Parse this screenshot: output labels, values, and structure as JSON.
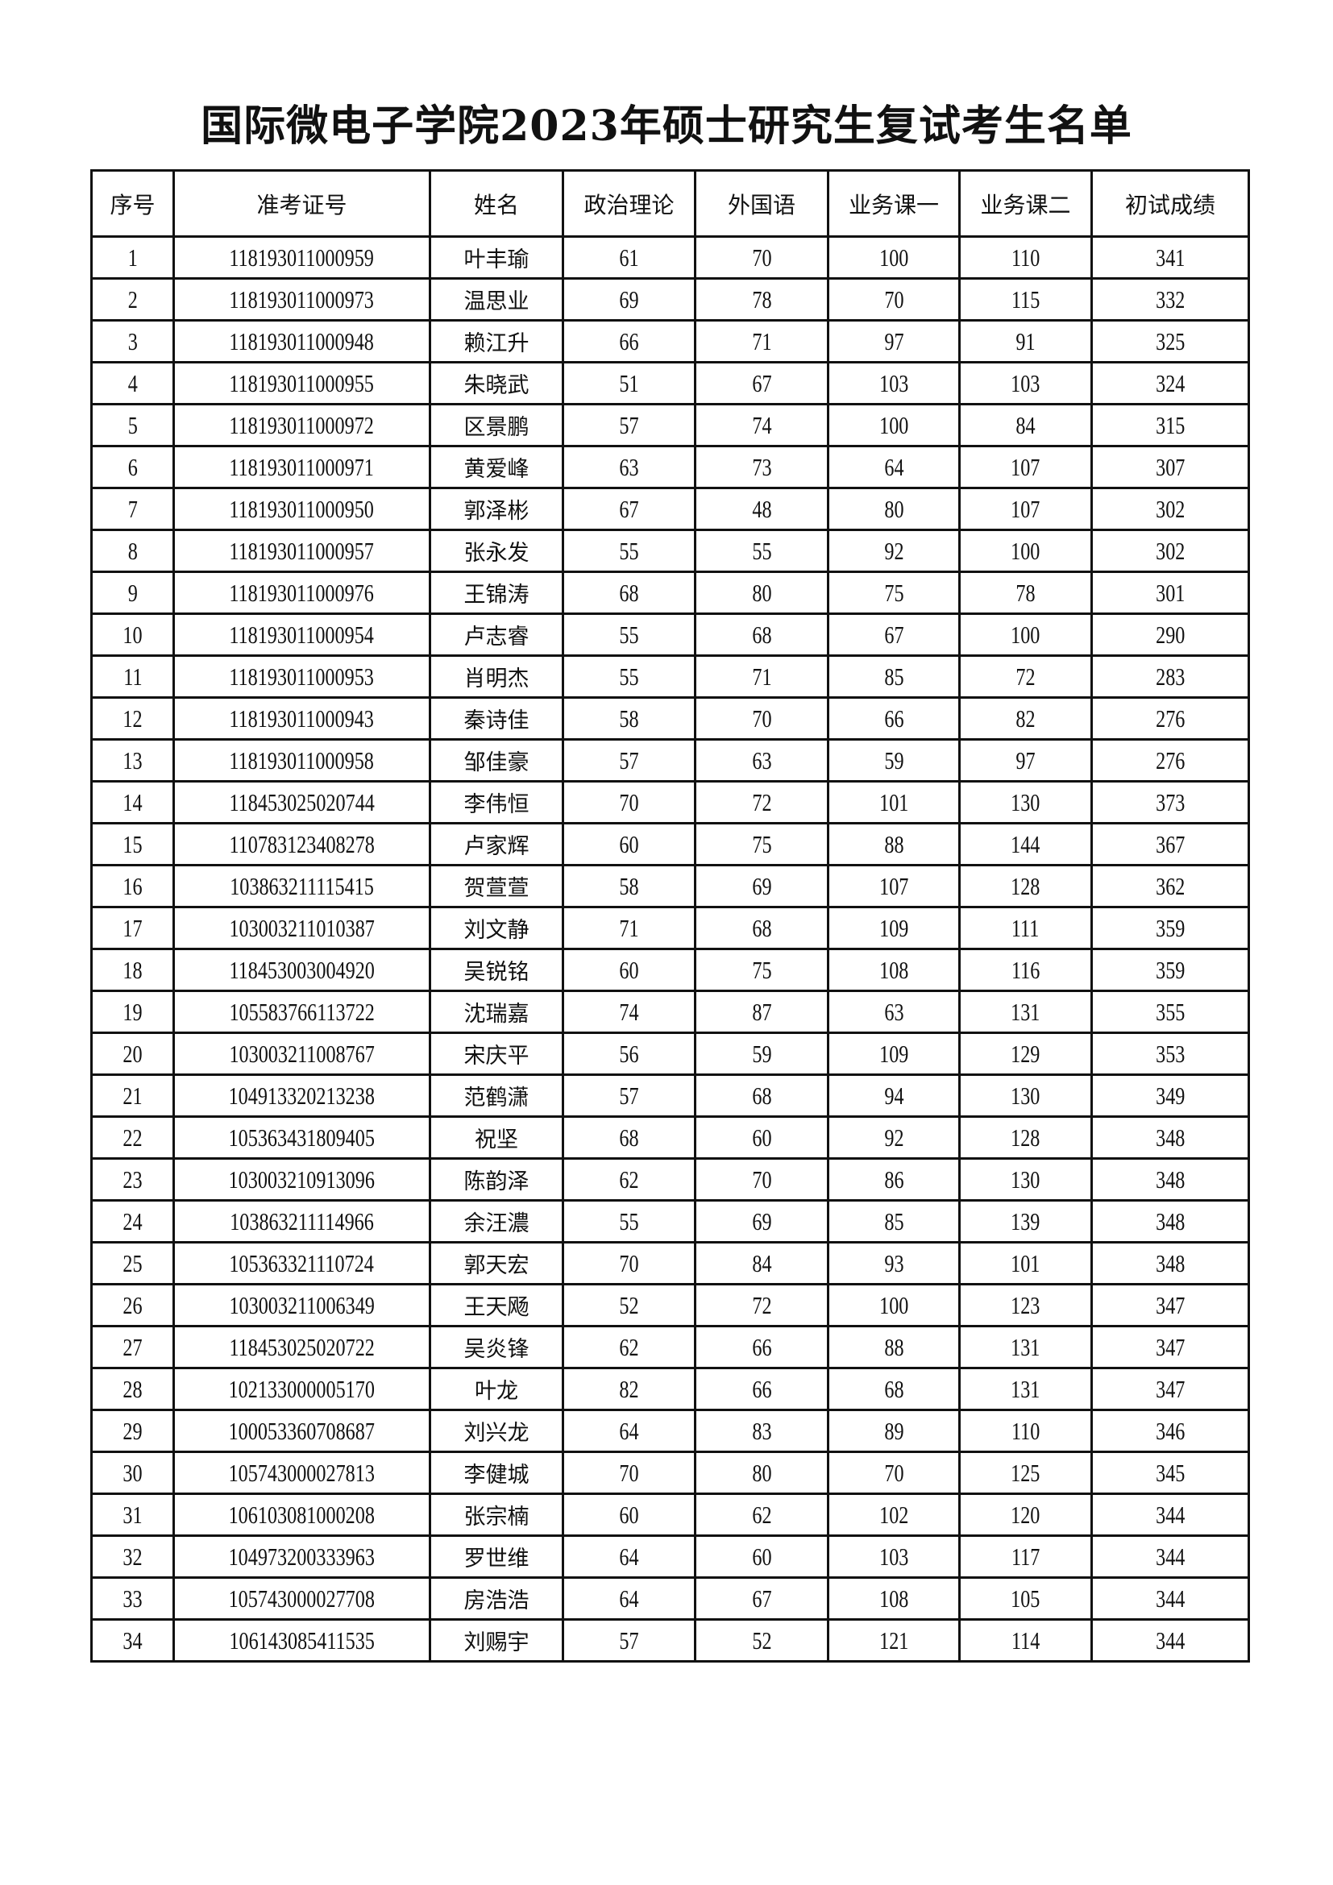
{
  "title": "国际微电子学院2023年硕士研究生复试考生名单",
  "table": {
    "headers": [
      "序号",
      "准考证号",
      "姓名",
      "政治理论",
      "外国语",
      "业务课一",
      "业务课二",
      "初试成绩"
    ],
    "rows": [
      [
        "1",
        "118193011000959",
        "叶丰瑜",
        "61",
        "70",
        "100",
        "110",
        "341"
      ],
      [
        "2",
        "118193011000973",
        "温思业",
        "69",
        "78",
        "70",
        "115",
        "332"
      ],
      [
        "3",
        "118193011000948",
        "赖江升",
        "66",
        "71",
        "97",
        "91",
        "325"
      ],
      [
        "4",
        "118193011000955",
        "朱晓武",
        "51",
        "67",
        "103",
        "103",
        "324"
      ],
      [
        "5",
        "118193011000972",
        "区景鹏",
        "57",
        "74",
        "100",
        "84",
        "315"
      ],
      [
        "6",
        "118193011000971",
        "黄爱峰",
        "63",
        "73",
        "64",
        "107",
        "307"
      ],
      [
        "7",
        "118193011000950",
        "郭泽彬",
        "67",
        "48",
        "80",
        "107",
        "302"
      ],
      [
        "8",
        "118193011000957",
        "张永发",
        "55",
        "55",
        "92",
        "100",
        "302"
      ],
      [
        "9",
        "118193011000976",
        "王锦涛",
        "68",
        "80",
        "75",
        "78",
        "301"
      ],
      [
        "10",
        "118193011000954",
        "卢志睿",
        "55",
        "68",
        "67",
        "100",
        "290"
      ],
      [
        "11",
        "118193011000953",
        "肖明杰",
        "55",
        "71",
        "85",
        "72",
        "283"
      ],
      [
        "12",
        "118193011000943",
        "秦诗佳",
        "58",
        "70",
        "66",
        "82",
        "276"
      ],
      [
        "13",
        "118193011000958",
        "邹佳豪",
        "57",
        "63",
        "59",
        "97",
        "276"
      ],
      [
        "14",
        "118453025020744",
        "李伟恒",
        "70",
        "72",
        "101",
        "130",
        "373"
      ],
      [
        "15",
        "110783123408278",
        "卢家辉",
        "60",
        "75",
        "88",
        "144",
        "367"
      ],
      [
        "16",
        "103863211115415",
        "贺萱萱",
        "58",
        "69",
        "107",
        "128",
        "362"
      ],
      [
        "17",
        "103003211010387",
        "刘文静",
        "71",
        "68",
        "109",
        "111",
        "359"
      ],
      [
        "18",
        "118453003004920",
        "吴锐铭",
        "60",
        "75",
        "108",
        "116",
        "359"
      ],
      [
        "19",
        "105583766113722",
        "沈瑞嘉",
        "74",
        "87",
        "63",
        "131",
        "355"
      ],
      [
        "20",
        "103003211008767",
        "宋庆平",
        "56",
        "59",
        "109",
        "129",
        "353"
      ],
      [
        "21",
        "104913320213238",
        "范鹤潇",
        "57",
        "68",
        "94",
        "130",
        "349"
      ],
      [
        "22",
        "105363431809405",
        "祝坚",
        "68",
        "60",
        "92",
        "128",
        "348"
      ],
      [
        "23",
        "103003210913096",
        "陈韵泽",
        "62",
        "70",
        "86",
        "130",
        "348"
      ],
      [
        "24",
        "103863211114966",
        "余汪濃",
        "55",
        "69",
        "85",
        "139",
        "348"
      ],
      [
        "25",
        "105363321110724",
        "郭天宏",
        "70",
        "84",
        "93",
        "101",
        "348"
      ],
      [
        "26",
        "103003211006349",
        "王天飏",
        "52",
        "72",
        "100",
        "123",
        "347"
      ],
      [
        "27",
        "118453025020722",
        "吴炎锋",
        "62",
        "66",
        "88",
        "131",
        "347"
      ],
      [
        "28",
        "102133000005170",
        "叶龙",
        "82",
        "66",
        "68",
        "131",
        "347"
      ],
      [
        "29",
        "100053360708687",
        "刘兴龙",
        "64",
        "83",
        "89",
        "110",
        "346"
      ],
      [
        "30",
        "105743000027813",
        "李健城",
        "70",
        "80",
        "70",
        "125",
        "345"
      ],
      [
        "31",
        "106103081000208",
        "张宗楠",
        "60",
        "62",
        "102",
        "120",
        "344"
      ],
      [
        "32",
        "104973200333963",
        "罗世维",
        "64",
        "60",
        "103",
        "117",
        "344"
      ],
      [
        "33",
        "105743000027708",
        "房浩浩",
        "64",
        "67",
        "108",
        "105",
        "344"
      ],
      [
        "34",
        "106143085411535",
        "刘赐宇",
        "57",
        "52",
        "121",
        "114",
        "344"
      ]
    ]
  }
}
